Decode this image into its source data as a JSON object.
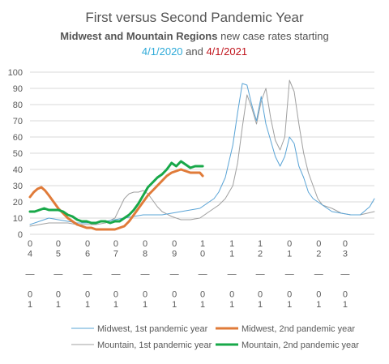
{
  "chart_data": {
    "type": "line",
    "title": "First versus Second Pandemic Year",
    "subtitle_bold": "Midwest and Mountain Regions",
    "subtitle_rest": " new case rates starting",
    "subtitle_line2": {
      "date1": "4/1/2020",
      "and": " and ",
      "date2": "4/1/2021"
    },
    "date_colors": {
      "date1": "#2eaad8",
      "date2": "#c0141c"
    },
    "xlabel": "",
    "ylabel": "",
    "ylim": [
      0,
      100
    ],
    "yticks": [
      0,
      10,
      20,
      30,
      40,
      50,
      60,
      70,
      80,
      90,
      100
    ],
    "grid": true,
    "legend_position": "bottom",
    "x_range_days": [
      0,
      365
    ],
    "x_ticks": [
      {
        "day": 0,
        "lines": [
          "0",
          "4",
          "",
          "—",
          "",
          "0",
          "1"
        ]
      },
      {
        "day": 30,
        "lines": [
          "0",
          "5",
          "",
          "—",
          "",
          "0",
          "1"
        ]
      },
      {
        "day": 61,
        "lines": [
          "0",
          "6",
          "",
          "—",
          "",
          "0",
          "1"
        ]
      },
      {
        "day": 91,
        "lines": [
          "0",
          "7",
          "",
          "—",
          "",
          "0",
          "1"
        ]
      },
      {
        "day": 122,
        "lines": [
          "0",
          "8",
          "",
          "—",
          "",
          "0",
          "1"
        ]
      },
      {
        "day": 153,
        "lines": [
          "0",
          "9",
          "",
          "—",
          "",
          "0",
          "1"
        ]
      },
      {
        "day": 183,
        "lines": [
          "1",
          "0",
          "",
          "—",
          "",
          "0",
          "1"
        ]
      },
      {
        "day": 214,
        "lines": [
          "1",
          "1",
          "",
          "—",
          "",
          "0",
          "1"
        ]
      },
      {
        "day": 244,
        "lines": [
          "1",
          "2",
          "",
          "—",
          "",
          "0",
          "1"
        ]
      },
      {
        "day": 275,
        "lines": [
          "0",
          "1",
          "",
          "—",
          "",
          "0",
          "1"
        ]
      },
      {
        "day": 306,
        "lines": [
          "0",
          "2",
          "",
          "—",
          "",
          "0",
          "1"
        ]
      },
      {
        "day": 334,
        "lines": [
          "0",
          "3",
          "",
          "—",
          "",
          "0",
          "1"
        ]
      }
    ],
    "series": [
      {
        "name": "Mountain, 1st pandemic year",
        "color": "#a0a0a0",
        "width": 1,
        "x": [
          0,
          10,
          20,
          30,
          40,
          50,
          60,
          70,
          80,
          90,
          95,
          100,
          105,
          110,
          115,
          120,
          125,
          130,
          135,
          140,
          150,
          160,
          170,
          180,
          190,
          200,
          207,
          215,
          220,
          225,
          230,
          235,
          240,
          245,
          250,
          255,
          260,
          265,
          270,
          275,
          280,
          285,
          290,
          295,
          300,
          305,
          310,
          320,
          330,
          340,
          350,
          365
        ],
        "y": [
          5,
          6,
          7,
          7,
          7,
          6,
          6,
          6,
          7,
          10,
          16,
          22,
          25,
          26,
          26,
          27,
          25,
          21,
          17,
          14,
          11,
          9,
          9,
          10,
          14,
          18,
          22,
          30,
          44,
          66,
          86,
          78,
          68,
          82,
          90,
          72,
          58,
          52,
          60,
          95,
          88,
          68,
          50,
          38,
          30,
          22,
          18,
          16,
          13,
          12,
          12,
          14
        ]
      },
      {
        "name": "Midwest, 1st pandemic year",
        "color": "#5aa4d6",
        "width": 1,
        "x": [
          0,
          10,
          20,
          30,
          40,
          50,
          60,
          70,
          80,
          90,
          100,
          110,
          120,
          130,
          140,
          150,
          160,
          170,
          180,
          185,
          190,
          195,
          200,
          207,
          215,
          220,
          225,
          230,
          235,
          240,
          245,
          250,
          255,
          260,
          265,
          270,
          275,
          280,
          285,
          290,
          295,
          300,
          310,
          320,
          330,
          340,
          350,
          360,
          365
        ],
        "y": [
          6,
          8,
          10,
          9,
          8,
          7,
          7,
          7,
          8,
          9,
          10,
          11,
          12,
          12,
          12,
          13,
          14,
          15,
          16,
          18,
          20,
          22,
          26,
          35,
          55,
          75,
          93,
          92,
          80,
          70,
          85,
          68,
          58,
          48,
          42,
          48,
          60,
          56,
          42,
          35,
          26,
          22,
          18,
          14,
          13,
          12,
          12,
          17,
          22
        ]
      },
      {
        "name": "Midwest, 2nd pandemic year",
        "color": "#e07b39",
        "width": 3,
        "x": [
          0,
          4,
          8,
          12,
          16,
          20,
          25,
          30,
          35,
          40,
          45,
          50,
          55,
          60,
          65,
          70,
          75,
          80,
          85,
          90,
          95,
          100,
          105,
          110,
          115,
          120,
          125,
          130,
          135,
          140,
          145,
          150,
          155,
          160,
          165,
          170,
          175,
          180,
          183
        ],
        "y": [
          23,
          26,
          28,
          29,
          27,
          24,
          20,
          16,
          13,
          10,
          8,
          6,
          5,
          4,
          4,
          3,
          3,
          3,
          3,
          3,
          4,
          5,
          8,
          12,
          16,
          20,
          24,
          27,
          30,
          33,
          36,
          38,
          39,
          40,
          39,
          38,
          38,
          38,
          36
        ]
      },
      {
        "name": "Mountain, 2nd pandemic year",
        "color": "#18a849",
        "width": 3,
        "x": [
          0,
          5,
          10,
          15,
          20,
          25,
          30,
          35,
          40,
          45,
          50,
          55,
          60,
          65,
          70,
          75,
          80,
          85,
          90,
          95,
          100,
          105,
          110,
          115,
          120,
          125,
          130,
          135,
          140,
          145,
          150,
          155,
          160,
          165,
          170,
          175,
          180,
          183
        ],
        "y": [
          14,
          14,
          15,
          16,
          15,
          15,
          15,
          14,
          12,
          11,
          9,
          8,
          8,
          7,
          7,
          8,
          8,
          7,
          8,
          8,
          10,
          12,
          15,
          19,
          24,
          29,
          32,
          35,
          37,
          40,
          44,
          42,
          45,
          43,
          41,
          42,
          42,
          42
        ]
      }
    ]
  },
  "legend": [
    {
      "label": "Midwest, 1st pandemic year",
      "color": "#5aa4d6",
      "width": 1
    },
    {
      "label": "Midwest, 2nd pandemic year",
      "color": "#e07b39",
      "width": 3
    },
    {
      "label": "Mountain, 1st pandemic year",
      "color": "#a0a0a0",
      "width": 1
    },
    {
      "label": "Mountain, 2nd pandemic year",
      "color": "#18a849",
      "width": 3
    }
  ]
}
